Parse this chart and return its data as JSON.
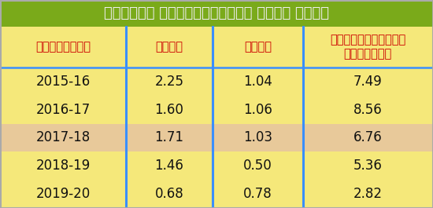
{
  "title": "మధ్యలో మానేస్తున్న వారి శాతం",
  "col_headers": [
    "సంవత్సరం",
    "ఐఐటీ",
    "ఐఐఎం",
    "ఇతరకేంద్రీయ\nసంస్థలు"
  ],
  "years": [
    "2015-16",
    "2016-17",
    "2017-18",
    "2018-19",
    "2019-20"
  ],
  "iit": [
    "2.25",
    "1.60",
    "1.71",
    "1.46",
    "0.68"
  ],
  "iim": [
    "1.04",
    "1.06",
    "1.03",
    "0.50",
    "0.78"
  ],
  "other": [
    "7.49",
    "8.56",
    "6.76",
    "5.36",
    "2.82"
  ],
  "title_bg": "#7aaa1a",
  "title_fg": "#eeeeee",
  "row_bg_light": "#f5e87a",
  "row_bg_alt": "#e8c99a",
  "divider_color": "#3a8fff",
  "header_text_color": "#cc0000",
  "data_text_color": "#111111",
  "outer_border": "#aaaaaa"
}
